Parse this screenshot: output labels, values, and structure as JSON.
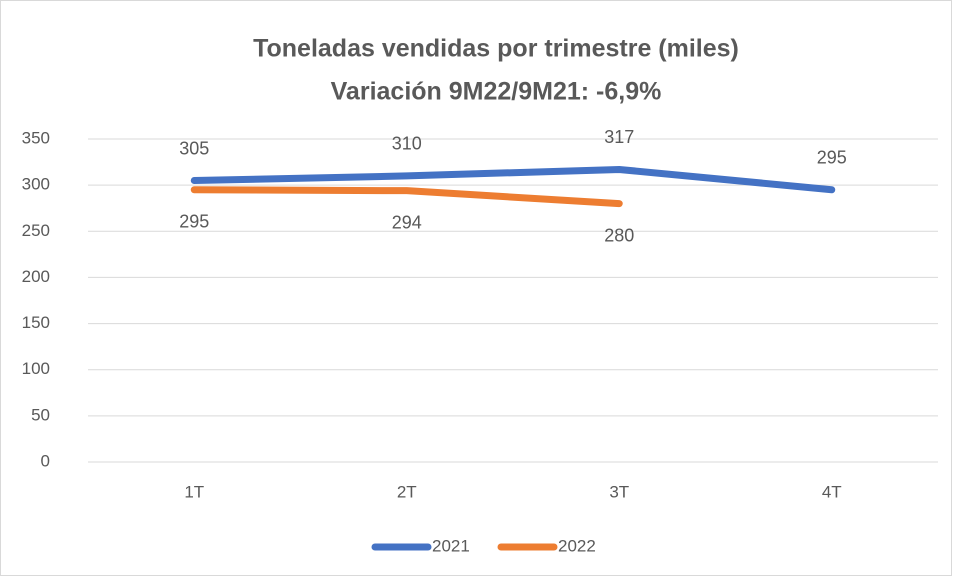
{
  "chart_data": {
    "type": "line",
    "title": "Toneladas vendidas por trimestre (miles)",
    "subtitle": "Variación 9M22/9M21: -6,9%",
    "categories": [
      "1T",
      "2T",
      "3T",
      "4T"
    ],
    "series": [
      {
        "name": "2021",
        "color": "#4472c4",
        "values": [
          305,
          310,
          317,
          295
        ]
      },
      {
        "name": "2022",
        "color": "#ed7d31",
        "values": [
          295,
          294,
          280,
          null
        ]
      }
    ],
    "ylim": [
      0,
      350
    ],
    "yticks": [
      0,
      50,
      100,
      150,
      200,
      250,
      300,
      350
    ],
    "grid": true,
    "legend": "bottom"
  }
}
